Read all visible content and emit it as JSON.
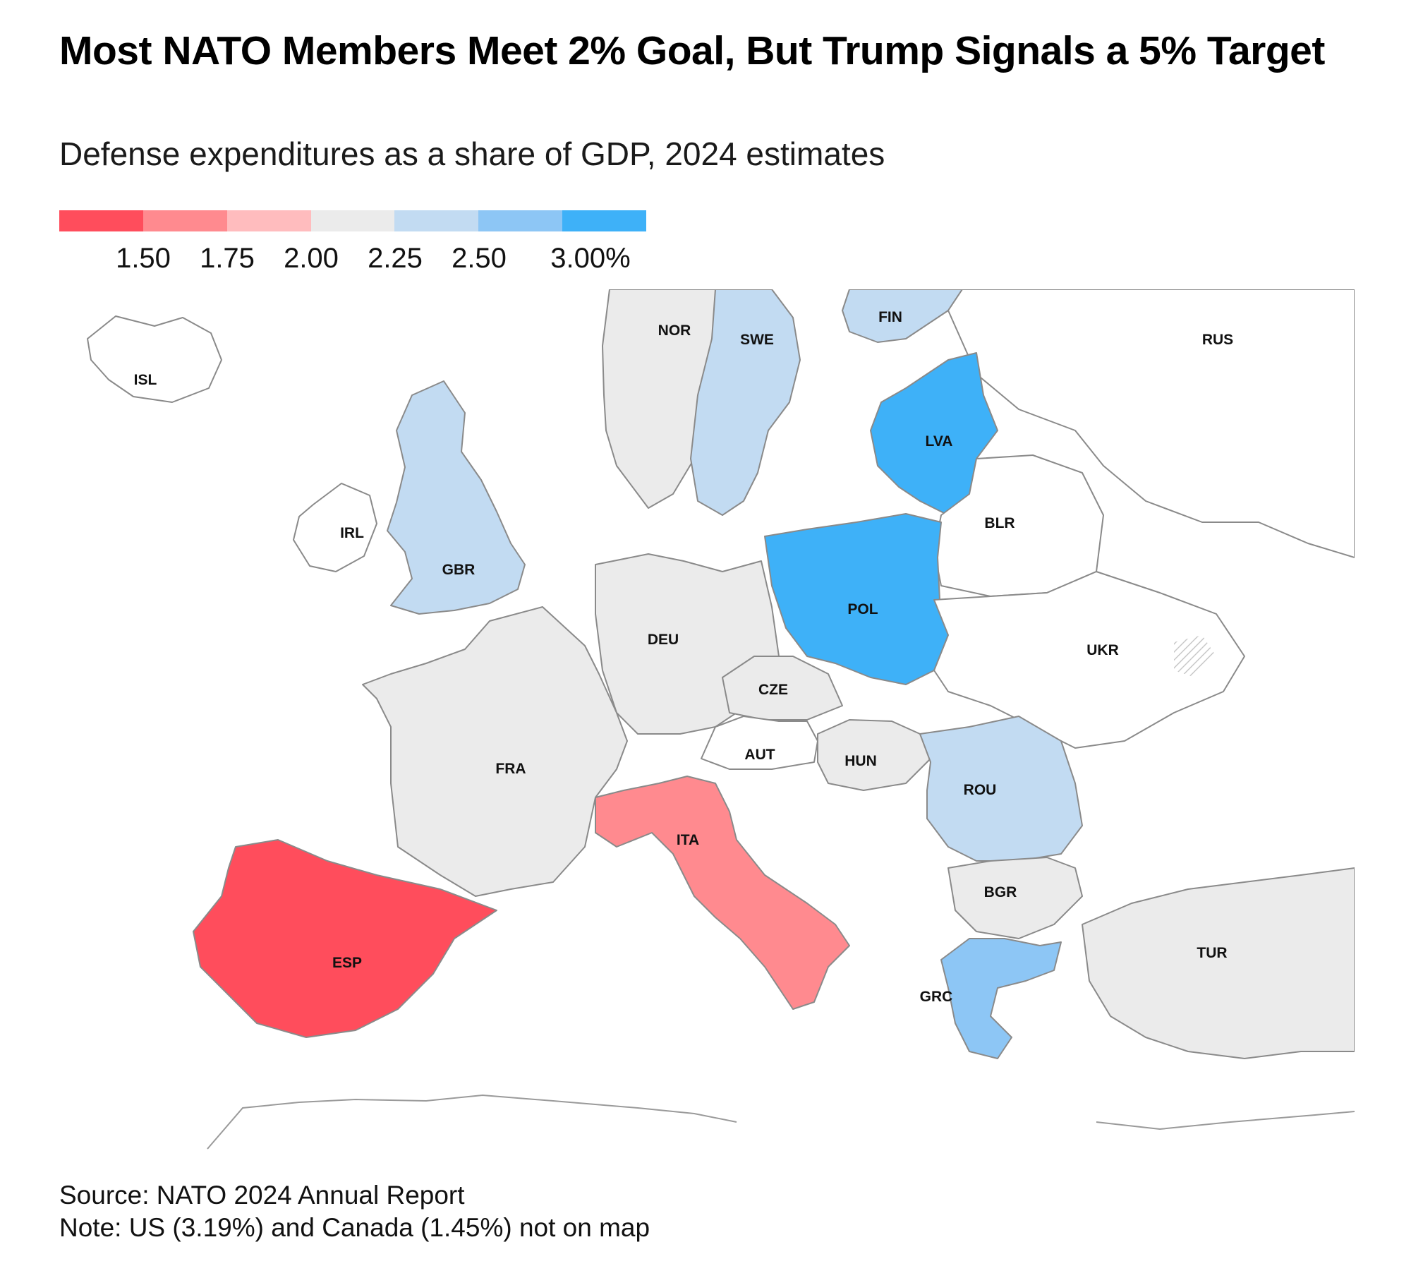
{
  "header": {
    "title": "Most NATO Members Meet 2% Goal, But Trump Signals a 5% Target",
    "subtitle": "Defense expenditures as a share of GDP, 2024 estimates"
  },
  "legend": {
    "colors": [
      "#ff4d5c",
      "#ff8a8f",
      "#ffbcbe",
      "#ebebeb",
      "#c2dbf2",
      "#8dc6f5",
      "#3eb1f8"
    ],
    "ticks": [
      "1.50",
      "1.75",
      "2.00",
      "2.25",
      "2.50",
      "3.00%"
    ]
  },
  "palette": {
    "nodata": "#ffffff",
    "border": "#8a8a8a"
  },
  "countries": [
    {
      "code": "ISL",
      "label": "ISL",
      "fill": "#ffffff"
    },
    {
      "code": "NOR",
      "label": "NOR",
      "fill": "#ebebeb"
    },
    {
      "code": "SWE",
      "label": "SWE",
      "fill": "#c2dbf2"
    },
    {
      "code": "FIN",
      "label": "FIN",
      "fill": "#c2dbf2"
    },
    {
      "code": "RUS",
      "label": "RUS",
      "fill": "#ffffff"
    },
    {
      "code": "LVA",
      "label": "LVA",
      "fill": "#3eb1f8"
    },
    {
      "code": "IRL",
      "label": "IRL",
      "fill": "#ffffff"
    },
    {
      "code": "GBR",
      "label": "GBR",
      "fill": "#c2dbf2"
    },
    {
      "code": "BLR",
      "label": "BLR",
      "fill": "#ffffff"
    },
    {
      "code": "POL",
      "label": "POL",
      "fill": "#3eb1f8"
    },
    {
      "code": "DEU",
      "label": "DEU",
      "fill": "#ebebeb"
    },
    {
      "code": "UKR",
      "label": "UKR",
      "fill": "#ffffff"
    },
    {
      "code": "CZE",
      "label": "CZE",
      "fill": "#ebebeb"
    },
    {
      "code": "AUT",
      "label": "AUT",
      "fill": "#ffffff"
    },
    {
      "code": "HUN",
      "label": "HUN",
      "fill": "#ebebeb"
    },
    {
      "code": "FRA",
      "label": "FRA",
      "fill": "#ebebeb"
    },
    {
      "code": "ROU",
      "label": "ROU",
      "fill": "#c2dbf2"
    },
    {
      "code": "ITA",
      "label": "ITA",
      "fill": "#ff8a8f"
    },
    {
      "code": "BGR",
      "label": "BGR",
      "fill": "#ebebeb"
    },
    {
      "code": "ESP",
      "label": "ESP",
      "fill": "#ff4d5c"
    },
    {
      "code": "TUR",
      "label": "TUR",
      "fill": "#ebebeb"
    },
    {
      "code": "GRC",
      "label": "GRC",
      "fill": "#8dc6f5"
    }
  ],
  "footer": {
    "source": "Source: NATO 2024 Annual Report",
    "note": "Note: US (3.19%) and Canada (1.45%) not on map"
  }
}
